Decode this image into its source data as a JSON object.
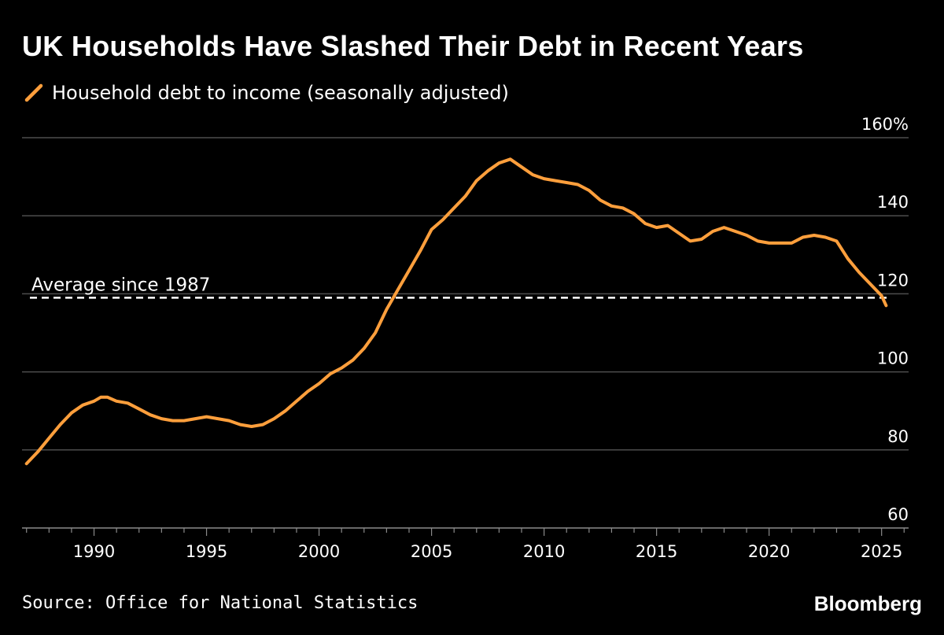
{
  "header": {
    "title": "UK Households Have Slashed Their Debt in Recent Years"
  },
  "footer": {
    "source": "Source: Office for National Statistics",
    "brand": "Bloomberg"
  },
  "colors": {
    "background": "#000000",
    "series": "#ff9f3c",
    "grid": "#4d4d4d",
    "text": "#ffffff",
    "reference_line": "#ffffff"
  },
  "chart_data": {
    "type": "line",
    "title": "UK Households Have Slashed Their Debt in Recent Years",
    "xlabel": "",
    "ylabel": "",
    "ylim": [
      60,
      160
    ],
    "xlim": [
      1986.8,
      2026.2
    ],
    "y_ticks": [
      {
        "value": 160,
        "label": "160%"
      },
      {
        "value": 140,
        "label": "140"
      },
      {
        "value": 120,
        "label": "120"
      },
      {
        "value": 100,
        "label": "100"
      },
      {
        "value": 80,
        "label": "80"
      },
      {
        "value": 60,
        "label": "60"
      }
    ],
    "x_ticks": [
      {
        "value": 1990,
        "label": "1990"
      },
      {
        "value": 1995,
        "label": "1995"
      },
      {
        "value": 2000,
        "label": "2000"
      },
      {
        "value": 2005,
        "label": "2005"
      },
      {
        "value": 2010,
        "label": "2010"
      },
      {
        "value": 2015,
        "label": "2015"
      },
      {
        "value": 2020,
        "label": "2020"
      },
      {
        "value": 2025,
        "label": "2025"
      }
    ],
    "grid": true,
    "legend": "top-left",
    "series": [
      {
        "name": "Household debt to income (seasonally adjusted)",
        "x": [
          1987.0,
          1987.5,
          1988.0,
          1988.5,
          1989.0,
          1989.5,
          1990.0,
          1990.3,
          1990.6,
          1991.0,
          1991.5,
          1992.0,
          1992.5,
          1993.0,
          1993.5,
          1994.0,
          1994.5,
          1995.0,
          1995.5,
          1996.0,
          1996.5,
          1997.0,
          1997.5,
          1998.0,
          1998.5,
          1999.0,
          1999.5,
          2000.0,
          2000.5,
          2001.0,
          2001.5,
          2002.0,
          2002.5,
          2003.0,
          2003.5,
          2004.0,
          2004.5,
          2005.0,
          2005.5,
          2006.0,
          2006.5,
          2007.0,
          2007.5,
          2008.0,
          2008.5,
          2009.0,
          2009.5,
          2010.0,
          2010.5,
          2011.0,
          2011.5,
          2012.0,
          2012.5,
          2013.0,
          2013.5,
          2014.0,
          2014.5,
          2015.0,
          2015.5,
          2016.0,
          2016.5,
          2017.0,
          2017.5,
          2018.0,
          2018.5,
          2019.0,
          2019.5,
          2020.0,
          2020.5,
          2021.0,
          2021.5,
          2022.0,
          2022.5,
          2023.0,
          2023.5,
          2024.0,
          2024.5,
          2025.0,
          2025.2
        ],
        "values": [
          76.5,
          79.5,
          83,
          86.5,
          89.5,
          91.5,
          92.5,
          93.5,
          93.5,
          92.5,
          92,
          90.5,
          89,
          88,
          87.5,
          87.5,
          88,
          88.5,
          88,
          87.5,
          86.5,
          86,
          86.5,
          88,
          90,
          92.5,
          95,
          97,
          99.5,
          101,
          103,
          106,
          110,
          116,
          121,
          126,
          131,
          136.5,
          139,
          142,
          145,
          149,
          151.5,
          153.5,
          154.5,
          152.5,
          150.5,
          149.5,
          149,
          148.5,
          148,
          146.5,
          144,
          142.5,
          142,
          140.5,
          138,
          137,
          137.5,
          135.5,
          133.5,
          134,
          136,
          137,
          136,
          135,
          133.5,
          133,
          133,
          133,
          134.5,
          135,
          134.5,
          133.5,
          129,
          125.5,
          122.5,
          119.5,
          117
        ]
      }
    ],
    "reference_lines": [
      {
        "label": "Average since 1987",
        "value": 119
      }
    ]
  }
}
